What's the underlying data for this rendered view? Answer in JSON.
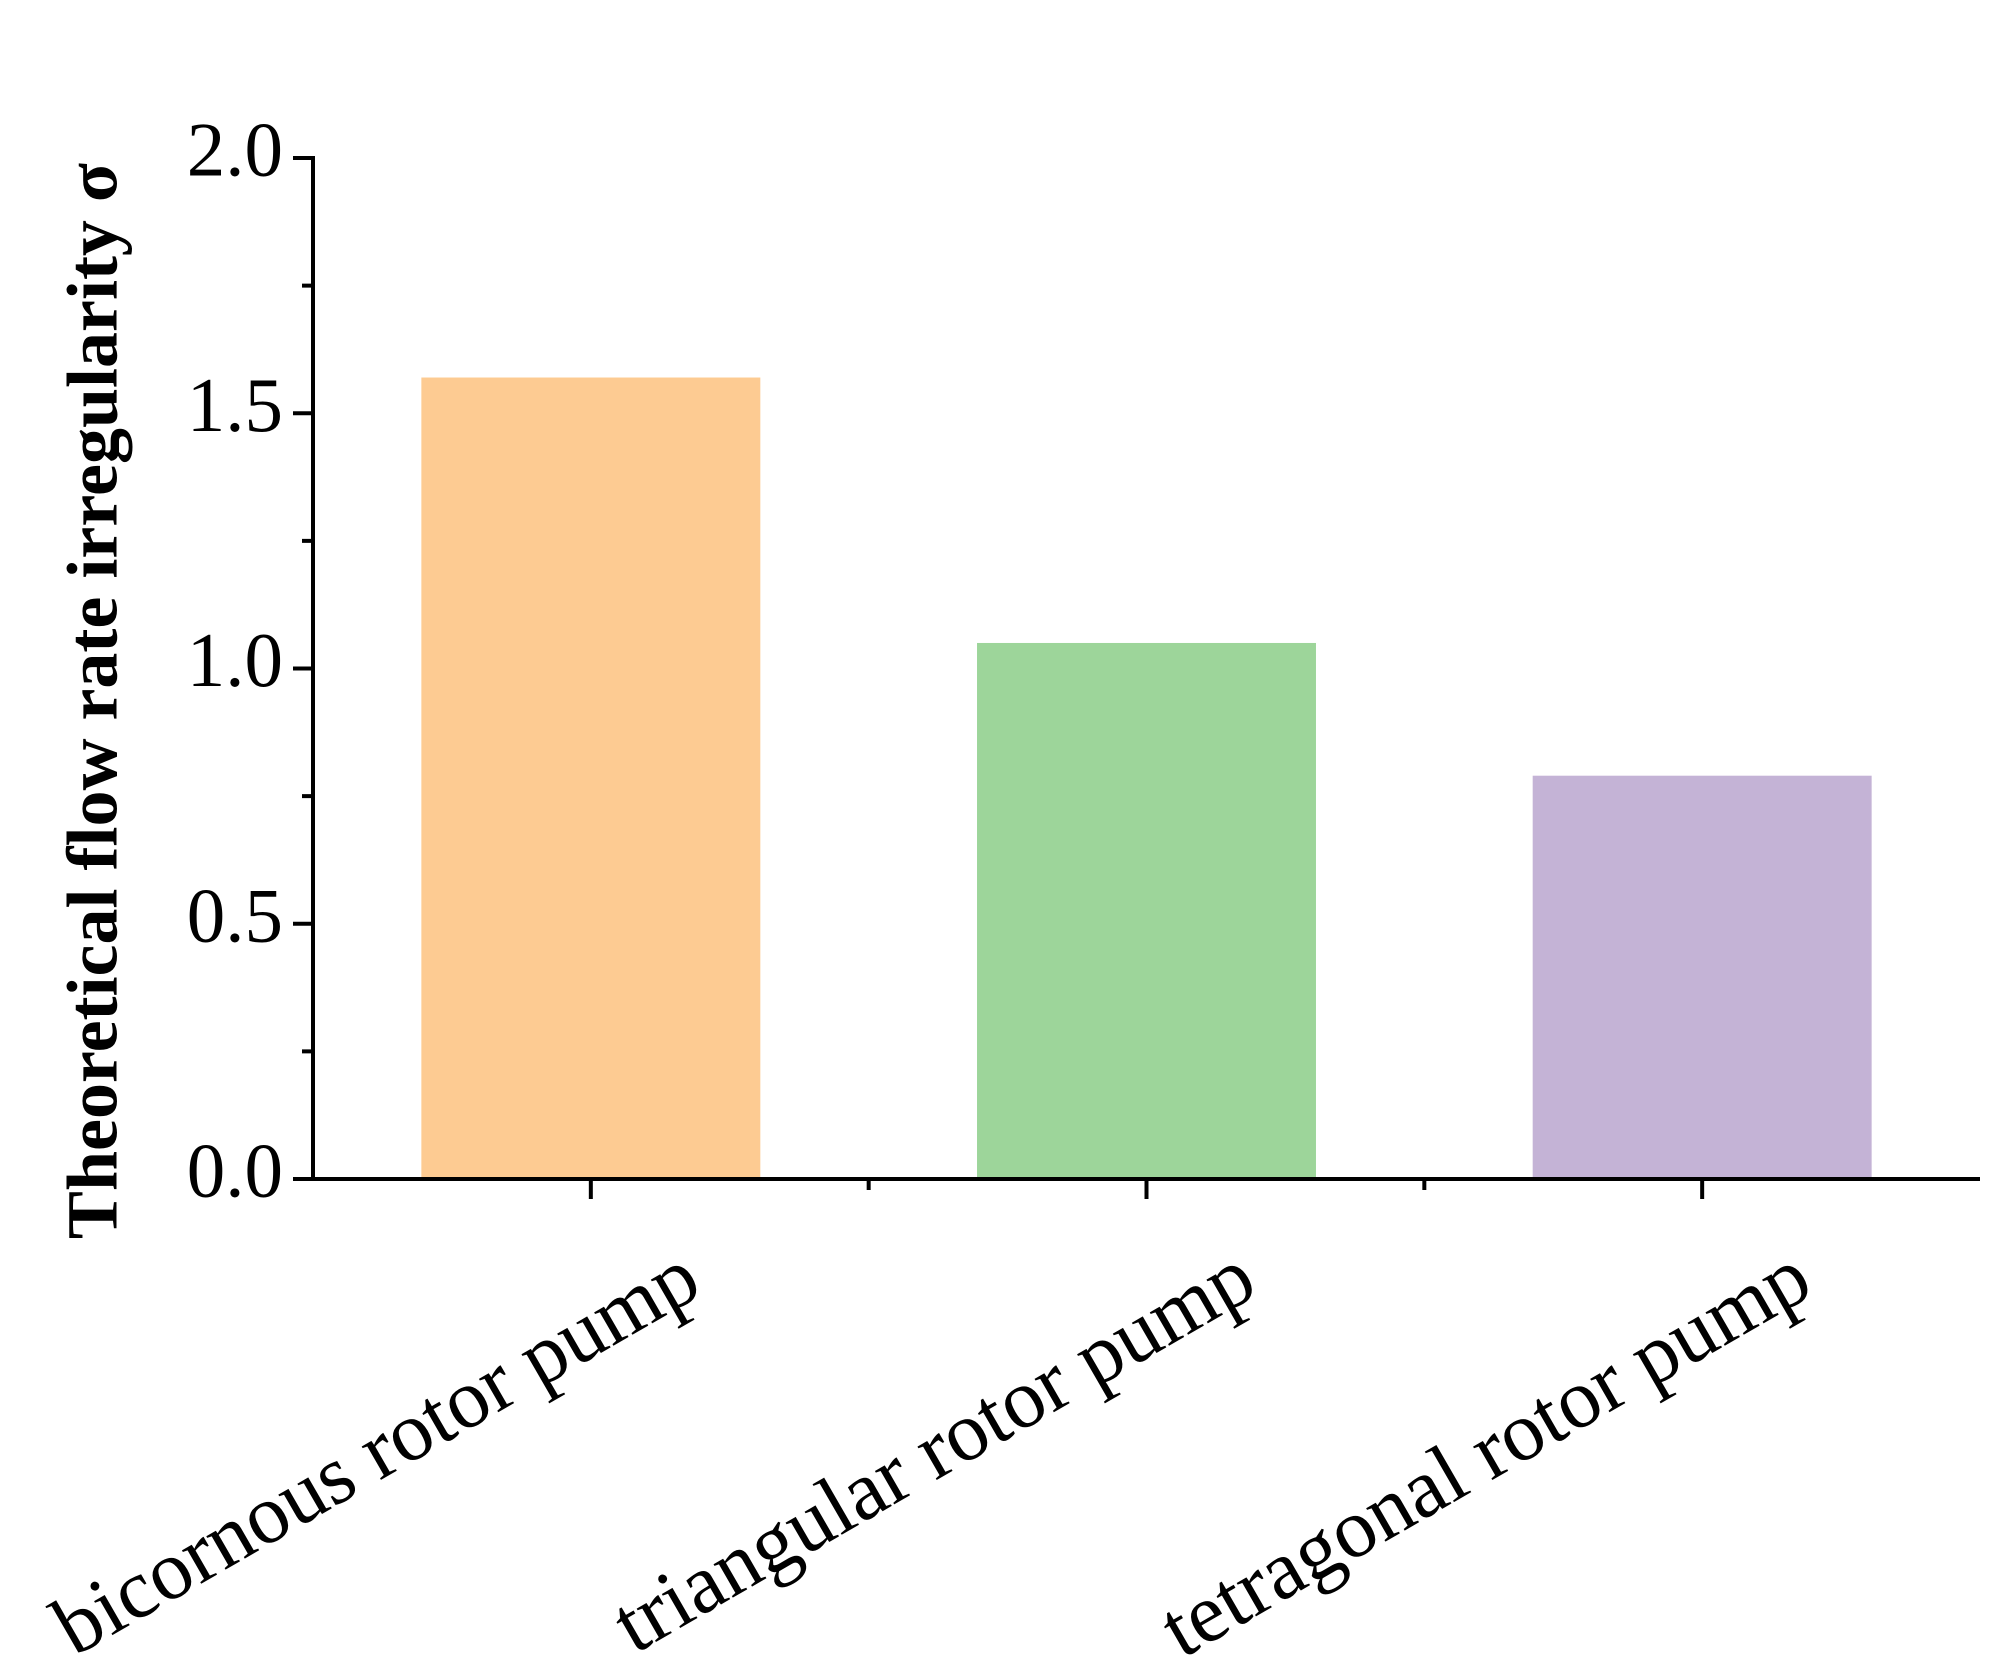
{
  "chart_data": {
    "type": "bar",
    "y_label": "Theoretical flow rate irregularity σ",
    "categories": [
      "bicornous rotor pump",
      "triangular rotor pump",
      "tetragonal rotor pump"
    ],
    "values": [
      1.57,
      1.05,
      0.79
    ],
    "colors": [
      "#fdcb92",
      "#9dd59a",
      "#c4b3d6"
    ],
    "ylim": [
      0,
      2
    ],
    "yticks": [
      {
        "value": 0,
        "label": "0.0"
      },
      0.5,
      {
        "value": 1,
        "label": "1.0"
      },
      1.5,
      {
        "value": 2,
        "label": "2.0"
      }
    ],
    "grid": false
  }
}
